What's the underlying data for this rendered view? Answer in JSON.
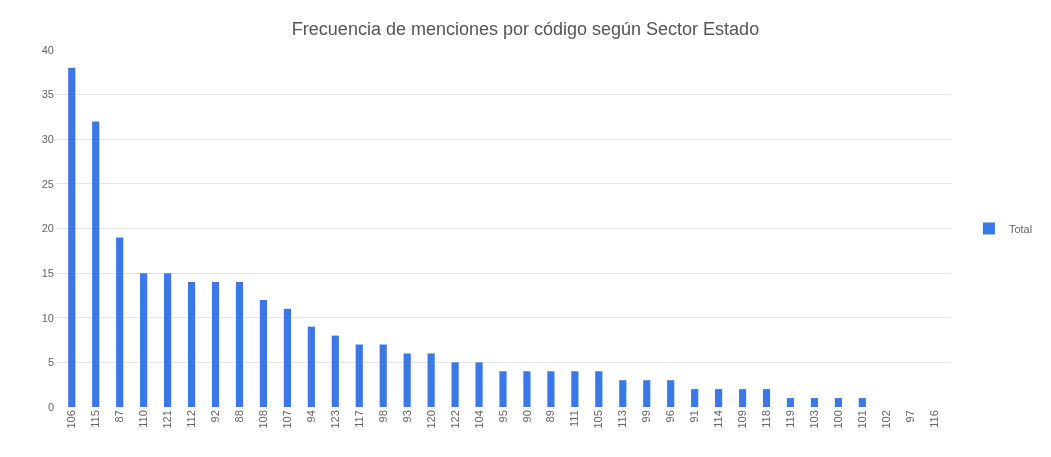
{
  "chart_data": {
    "type": "bar",
    "title": "Frecuencia de menciones por código según Sector Estado",
    "categories": [
      "106",
      "115",
      "87",
      "110",
      "121",
      "112",
      "92",
      "88",
      "108",
      "107",
      "94",
      "123",
      "117",
      "98",
      "93",
      "120",
      "122",
      "104",
      "95",
      "90",
      "89",
      "111",
      "105",
      "113",
      "99",
      "96",
      "91",
      "114",
      "109",
      "118",
      "119",
      "103",
      "100",
      "101",
      "102",
      "97",
      "116"
    ],
    "series": [
      {
        "name": "Total",
        "color": "#3b78e7",
        "values": [
          38,
          32,
          19,
          15,
          15,
          14,
          14,
          14,
          12,
          11,
          9,
          8,
          7,
          7,
          6,
          6,
          5,
          5,
          4,
          4,
          4,
          4,
          4,
          3,
          3,
          3,
          2,
          2,
          2,
          2,
          1,
          1,
          1,
          1,
          0,
          0,
          0
        ]
      }
    ],
    "ylim": [
      0,
      40
    ],
    "yticks": [
      0,
      5,
      10,
      15,
      20,
      25,
      30,
      35,
      40
    ],
    "grid": "y",
    "legend": "right"
  }
}
